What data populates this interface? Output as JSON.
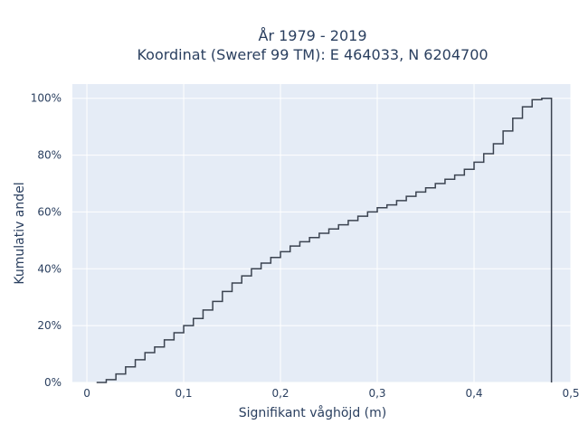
{
  "chart_data": {
    "type": "line",
    "line_shape": "step",
    "title": [
      "År 1979 - 2019",
      "Koordinat (Sweref 99 TM): E 464033, N 6204700"
    ],
    "xlabel": "Signifikant våghöjd (m)",
    "ylabel": "Kumulativ andel",
    "xlim": [
      -0.015,
      0.5
    ],
    "ylim": [
      0,
      1.05
    ],
    "xticks": [
      0,
      0.1,
      0.2,
      0.3,
      0.4,
      0.5
    ],
    "xtick_labels": [
      "0",
      "0,1",
      "0,2",
      "0,3",
      "0,4",
      "0,5"
    ],
    "yticks": [
      0,
      0.2,
      0.4,
      0.6,
      0.8,
      1.0
    ],
    "ytick_labels": [
      "0%",
      "20%",
      "40%",
      "60%",
      "80%",
      "100%"
    ],
    "grid": true,
    "colors": {
      "plot_bg": "#e5ecf6",
      "grid": "#ffffff",
      "line": "#3b4350",
      "text": "#2a3f5f"
    },
    "series": [
      {
        "x": [
          0.01,
          0.02,
          0.03,
          0.04,
          0.05,
          0.06,
          0.07,
          0.08,
          0.09,
          0.1,
          0.11,
          0.12,
          0.13,
          0.14,
          0.15,
          0.16,
          0.17,
          0.18,
          0.19,
          0.2,
          0.21,
          0.22,
          0.23,
          0.24,
          0.25,
          0.26,
          0.27,
          0.28,
          0.29,
          0.3,
          0.31,
          0.32,
          0.33,
          0.34,
          0.35,
          0.36,
          0.37,
          0.38,
          0.39,
          0.4,
          0.41,
          0.42,
          0.43,
          0.44,
          0.45,
          0.46,
          0.47,
          0.48
        ],
        "y": [
          0.0,
          0.01,
          0.03,
          0.055,
          0.08,
          0.105,
          0.125,
          0.15,
          0.175,
          0.2,
          0.225,
          0.255,
          0.285,
          0.32,
          0.35,
          0.375,
          0.4,
          0.42,
          0.44,
          0.46,
          0.48,
          0.495,
          0.51,
          0.525,
          0.54,
          0.555,
          0.57,
          0.585,
          0.6,
          0.615,
          0.625,
          0.64,
          0.655,
          0.67,
          0.685,
          0.7,
          0.715,
          0.73,
          0.75,
          0.775,
          0.805,
          0.84,
          0.885,
          0.93,
          0.97,
          0.995,
          1.0,
          0.0
        ]
      }
    ]
  }
}
